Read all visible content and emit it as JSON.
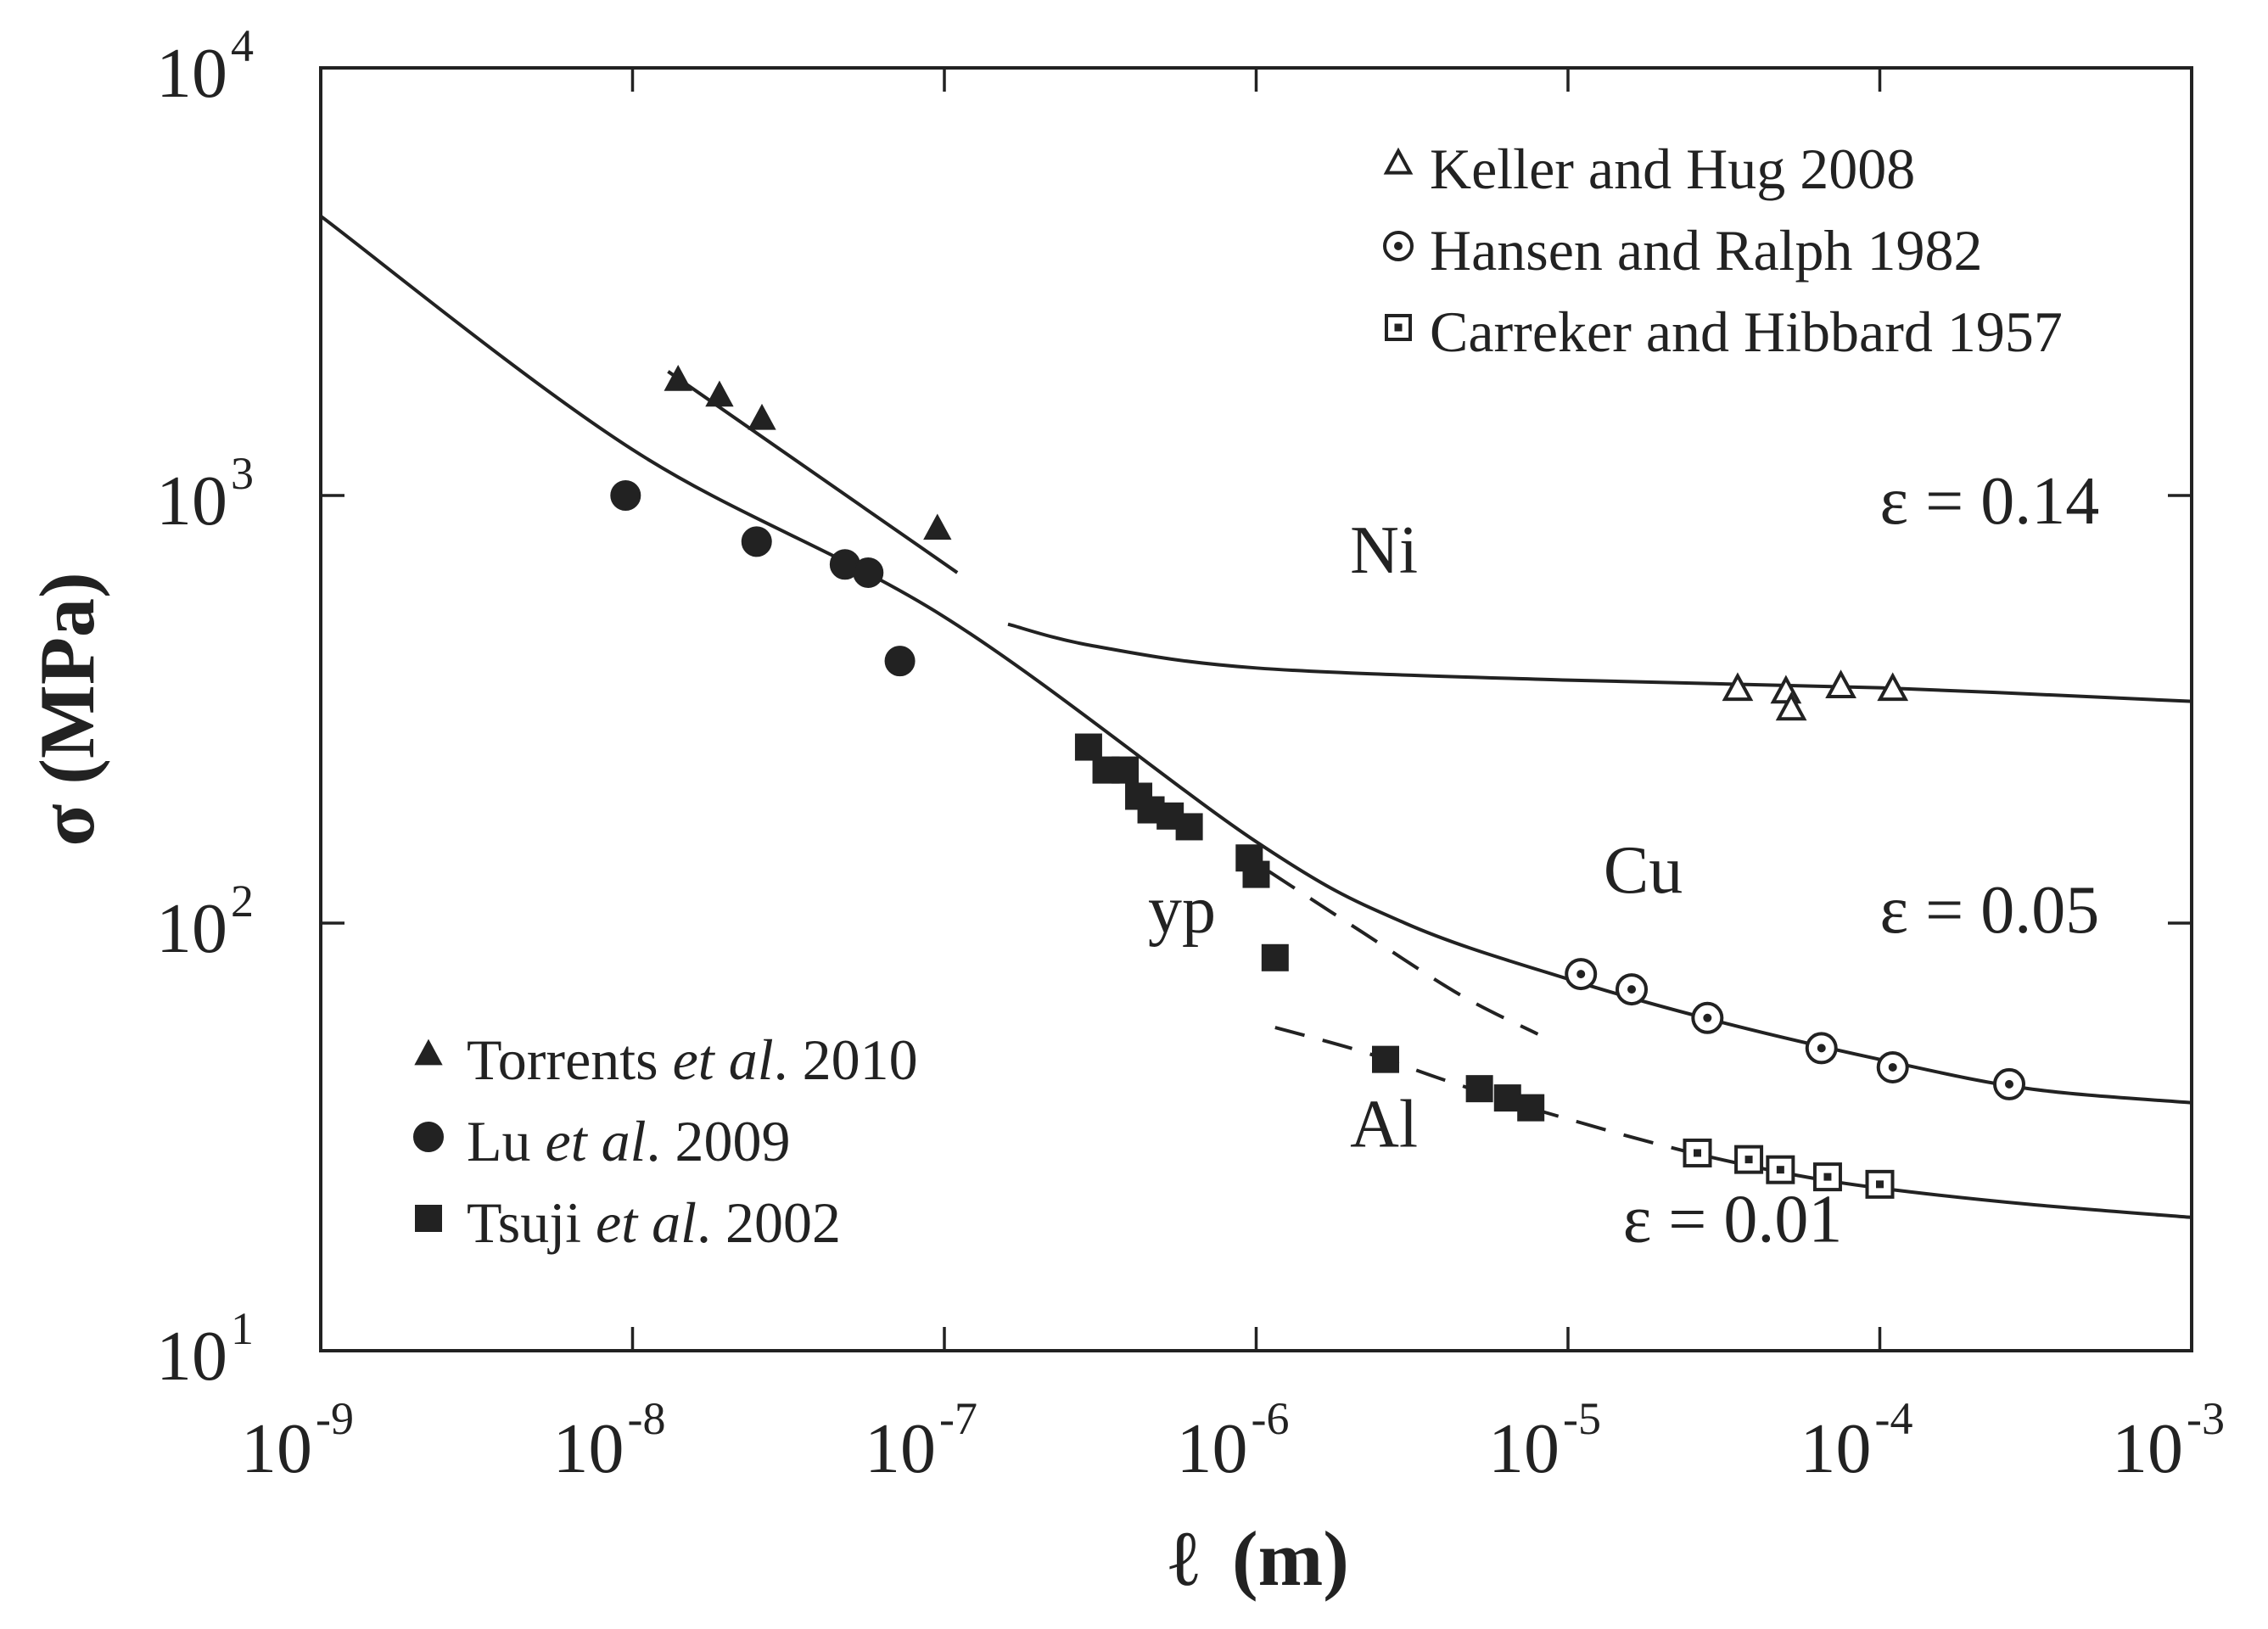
{
  "chart_data": {
    "type": "scatter",
    "title": "",
    "xlabel": "ℓ",
    "xlabel_unit": "(m)",
    "ylabel": "σ (MPa)",
    "x_scale": "log",
    "y_scale": "log",
    "xlim": [
      1e-09,
      0.001
    ],
    "ylim": [
      10,
      10000
    ],
    "grid": false,
    "x_ticks": [
      {
        "value": 1e-09,
        "base": "10",
        "exp": "-9"
      },
      {
        "value": 1e-08,
        "base": "10",
        "exp": "-8"
      },
      {
        "value": 1e-07,
        "base": "10",
        "exp": "-7"
      },
      {
        "value": 1e-06,
        "base": "10",
        "exp": "-6"
      },
      {
        "value": 1e-05,
        "base": "10",
        "exp": "-5"
      },
      {
        "value": 0.0001,
        "base": "10",
        "exp": "-4"
      },
      {
        "value": 0.001,
        "base": "10",
        "exp": "-3"
      }
    ],
    "y_ticks": [
      {
        "value": 10,
        "base": "10",
        "exp": "1"
      },
      {
        "value": 100,
        "base": "10",
        "exp": "2"
      },
      {
        "value": 1000,
        "base": "10",
        "exp": "3"
      },
      {
        "value": 10000,
        "base": "10",
        "exp": "4"
      }
    ],
    "series": [
      {
        "name": "Keller and Hug 2008",
        "marker": "triangle-open",
        "legend": "top-right",
        "x": [
          3.5e-05,
          5e-05,
          5.2e-05,
          7.5e-05,
          0.00011
        ],
        "y": [
          350,
          345,
          315,
          355,
          350
        ]
      },
      {
        "name": "Hansen and Ralph 1982",
        "marker": "circle-open",
        "legend": "top-right",
        "x": [
          1.1e-05,
          1.6e-05,
          2.8e-05,
          6.5e-05,
          0.00011,
          0.00026
        ],
        "y": [
          76,
          70,
          60,
          51,
          46,
          42
        ]
      },
      {
        "name": "Carreker and Hibbard 1957",
        "marker": "square-open",
        "legend": "top-right",
        "x": [
          2.6e-05,
          3.8e-05,
          4.8e-05,
          6.8e-05,
          0.0001
        ],
        "y": [
          29,
          28,
          26.5,
          25.5,
          24.5
        ]
      },
      {
        "name": "Torrents et al. 2010",
        "name_prefix": "Torrents ",
        "name_italic": "et al",
        "name_suffix": ". 2010",
        "marker": "triangle-filled",
        "legend": "bottom-left",
        "x": [
          1.4e-08,
          1.9e-08,
          2.6e-08,
          9.5e-08
        ],
        "y": [
          1850,
          1700,
          1500,
          830
        ]
      },
      {
        "name": "Lu et al. 2009",
        "name_prefix": "Lu ",
        "name_italic": "et al",
        "name_suffix": ". 2009",
        "marker": "circle-filled",
        "legend": "bottom-left",
        "x": [
          9.5e-09,
          2.5e-08,
          4.8e-08,
          5.7e-08,
          7.2e-08
        ],
        "y": [
          1000,
          780,
          690,
          660,
          410
        ]
      },
      {
        "name": "Tsuji et al. 2002",
        "name_prefix": "Tsuji ",
        "name_italic": "et al",
        "name_suffix": ". 2002",
        "marker": "square-filled",
        "legend": "bottom-left",
        "x": [
          2.9e-07,
          3.3e-07,
          3.8e-07,
          4.2e-07,
          4.6e-07,
          5.3e-07,
          6.1e-07,
          9.5e-07,
          1e-06,
          1.15e-06,
          2.6e-06,
          5.2e-06,
          6.4e-06,
          7.6e-06
        ],
        "y": [
          258,
          228,
          228,
          198,
          184,
          178,
          168,
          142,
          130,
          83,
          48,
          41,
          39,
          37
        ]
      }
    ],
    "curves": [
      {
        "name": "Hall-Petch fit",
        "style": "solid",
        "x": [
          1e-09,
          1e-08,
          1e-07,
          1e-06,
          3e-06,
          1e-05,
          3e-05,
          0.0001,
          0.0003,
          0.001
        ],
        "y": [
          4500,
          1280,
          520,
          155,
          100,
          74,
          59,
          48,
          41,
          38
        ]
      },
      {
        "name": "Ni fit",
        "style": "solid",
        "x": [
          1.6e-07,
          3e-07,
          1e-06,
          1e-05,
          0.0001,
          0.001
        ],
        "y": [
          500,
          445,
          395,
          370,
          355,
          330
        ]
      },
      {
        "name": "Torrents fit",
        "style": "solid",
        "x": [
          1.3e-08,
          1.1e-07
        ],
        "y": [
          1950,
          660
        ]
      },
      {
        "name": "Al yp dashed",
        "style": "dashed",
        "x": [
          1.1e-06,
          2.2e-06,
          4.5e-06,
          8e-06
        ],
        "y": [
          132,
          95,
          68,
          55
        ]
      },
      {
        "name": "Al dashed",
        "style": "dashed",
        "x": [
          1.15e-06,
          2.2e-06,
          4e-06,
          7.5e-06
        ],
        "y": [
          57,
          50,
          43,
          37
        ]
      },
      {
        "name": "Al dashed extension",
        "style": "dashed",
        "x": [
          7.5e-06,
          1.5e-05,
          2.5e-05
        ],
        "y": [
          37,
          32,
          29
        ]
      },
      {
        "name": "Al fit",
        "style": "solid",
        "x": [
          2.5e-05,
          5e-05,
          0.0001,
          0.0003,
          0.001
        ],
        "y": [
          29,
          26,
          24,
          22,
          20.5
        ]
      }
    ],
    "annotations": [
      {
        "text": "Ni",
        "x": 2e-06,
        "y": 660
      },
      {
        "text": "Cu",
        "x": 1.3e-05,
        "y": 118
      },
      {
        "text": "yp",
        "x": 4.5e-07,
        "y": 95
      },
      {
        "text": "Al",
        "x": 2e-06,
        "y": 30
      },
      {
        "text": "ε = 0.14",
        "x": 0.0001,
        "y": 860
      },
      {
        "text": "ε = 0.05",
        "x": 0.0001,
        "y": 95
      },
      {
        "text": "ε = 0.01",
        "x": 1.5e-05,
        "y": 18
      }
    ]
  }
}
